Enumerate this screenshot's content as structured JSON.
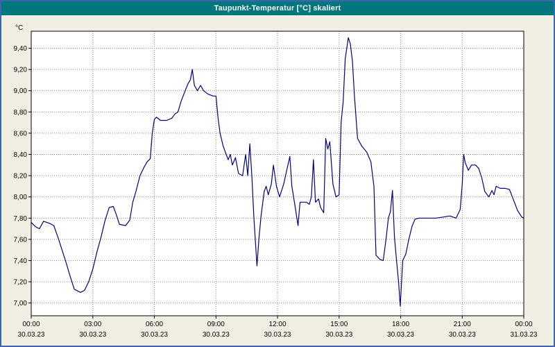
{
  "window": {
    "title": "Taupunkt-Temperatur [°C] skaliert"
  },
  "colors": {
    "titlebar_bg": "#00767d",
    "titlebar_text": "#ffffff",
    "window_border": "#3a66b0",
    "chart_bg": "#f1efe4",
    "plot_bg": "#ffffff",
    "grid": "#8a8a8a",
    "axis": "#000000",
    "series_line": "#000080"
  },
  "chart_data": {
    "type": "line",
    "title": "Taupunkt-Temperatur [°C] skaliert",
    "ylabel": "°C",
    "xlabel": "",
    "legend": "none",
    "grid": "dotted",
    "ylim": [
      6.88,
      9.56
    ],
    "xlim_hours": [
      0,
      24
    ],
    "y_ticks": [
      {
        "value": 9.4,
        "label": "9,40"
      },
      {
        "value": 9.2,
        "label": "9,20"
      },
      {
        "value": 9.0,
        "label": "9,00"
      },
      {
        "value": 8.8,
        "label": "8,80"
      },
      {
        "value": 8.6,
        "label": "8,60"
      },
      {
        "value": 8.4,
        "label": "8,40"
      },
      {
        "value": 8.2,
        "label": "8,20"
      },
      {
        "value": 8.0,
        "label": "8,00"
      },
      {
        "value": 7.8,
        "label": "7,80"
      },
      {
        "value": 7.6,
        "label": "7,60"
      },
      {
        "value": 7.4,
        "label": "7,40"
      },
      {
        "value": 7.2,
        "label": "7,20"
      },
      {
        "value": 7.0,
        "label": "7,00"
      }
    ],
    "x_ticks": [
      {
        "hour": 0,
        "time": "00:00",
        "date": "30.03.23"
      },
      {
        "hour": 3,
        "time": "03:00",
        "date": "30.03.23"
      },
      {
        "hour": 6,
        "time": "06:00",
        "date": "30.03.23"
      },
      {
        "hour": 9,
        "time": "09:00",
        "date": "30.03.23"
      },
      {
        "hour": 12,
        "time": "12:00",
        "date": "30.03.23"
      },
      {
        "hour": 15,
        "time": "15:00",
        "date": "30.03.23"
      },
      {
        "hour": 18,
        "time": "18:00",
        "date": "30.03.23"
      },
      {
        "hour": 21,
        "time": "21:00",
        "date": "30.03.23"
      },
      {
        "hour": 24,
        "time": "00:00",
        "date": "31.03.23"
      }
    ],
    "series": [
      {
        "name": "Taupunkt-Temperatur [°C]",
        "color": "#000080",
        "points": [
          [
            0.0,
            7.76
          ],
          [
            0.2,
            7.72
          ],
          [
            0.4,
            7.7
          ],
          [
            0.6,
            7.77
          ],
          [
            0.9,
            7.75
          ],
          [
            1.1,
            7.73
          ],
          [
            1.3,
            7.62
          ],
          [
            1.5,
            7.5
          ],
          [
            1.7,
            7.38
          ],
          [
            1.9,
            7.25
          ],
          [
            2.1,
            7.13
          ],
          [
            2.4,
            7.1
          ],
          [
            2.6,
            7.12
          ],
          [
            2.8,
            7.2
          ],
          [
            3.0,
            7.32
          ],
          [
            3.2,
            7.48
          ],
          [
            3.4,
            7.62
          ],
          [
            3.6,
            7.78
          ],
          [
            3.8,
            7.9
          ],
          [
            4.0,
            7.91
          ],
          [
            4.15,
            7.83
          ],
          [
            4.3,
            7.74
          ],
          [
            4.6,
            7.73
          ],
          [
            4.8,
            7.78
          ],
          [
            4.95,
            7.95
          ],
          [
            5.1,
            8.05
          ],
          [
            5.3,
            8.2
          ],
          [
            5.5,
            8.28
          ],
          [
            5.65,
            8.33
          ],
          [
            5.8,
            8.36
          ],
          [
            5.9,
            8.6
          ],
          [
            6.0,
            8.73
          ],
          [
            6.1,
            8.75
          ],
          [
            6.3,
            8.72
          ],
          [
            6.6,
            8.72
          ],
          [
            6.85,
            8.74
          ],
          [
            7.0,
            8.78
          ],
          [
            7.15,
            8.8
          ],
          [
            7.3,
            8.9
          ],
          [
            7.5,
            9.0
          ],
          [
            7.65,
            9.07
          ],
          [
            7.75,
            9.1
          ],
          [
            7.85,
            9.2
          ],
          [
            7.95,
            9.05
          ],
          [
            8.1,
            9.0
          ],
          [
            8.25,
            9.05
          ],
          [
            8.4,
            9.0
          ],
          [
            8.6,
            8.97
          ],
          [
            8.85,
            8.95
          ],
          [
            9.0,
            8.95
          ],
          [
            9.1,
            8.75
          ],
          [
            9.2,
            8.6
          ],
          [
            9.35,
            8.48
          ],
          [
            9.5,
            8.4
          ],
          [
            9.6,
            8.35
          ],
          [
            9.7,
            8.4
          ],
          [
            9.8,
            8.3
          ],
          [
            9.95,
            8.37
          ],
          [
            10.1,
            8.22
          ],
          [
            10.3,
            8.2
          ],
          [
            10.45,
            8.4
          ],
          [
            10.55,
            8.2
          ],
          [
            10.65,
            8.5
          ],
          [
            10.75,
            8.2
          ],
          [
            10.85,
            7.8
          ],
          [
            11.0,
            7.35
          ],
          [
            11.1,
            7.62
          ],
          [
            11.2,
            7.82
          ],
          [
            11.35,
            8.05
          ],
          [
            11.45,
            8.1
          ],
          [
            11.55,
            8.02
          ],
          [
            11.7,
            8.12
          ],
          [
            11.8,
            8.3
          ],
          [
            11.95,
            8.1
          ],
          [
            12.1,
            8.0
          ],
          [
            12.3,
            8.12
          ],
          [
            12.45,
            8.25
          ],
          [
            12.6,
            8.38
          ],
          [
            12.7,
            8.1
          ],
          [
            12.85,
            7.92
          ],
          [
            13.0,
            7.73
          ],
          [
            13.1,
            7.95
          ],
          [
            13.4,
            7.95
          ],
          [
            13.55,
            7.93
          ],
          [
            13.65,
            8.0
          ],
          [
            13.75,
            8.35
          ],
          [
            13.85,
            7.95
          ],
          [
            14.0,
            7.98
          ],
          [
            14.1,
            7.9
          ],
          [
            14.25,
            7.85
          ],
          [
            14.35,
            8.55
          ],
          [
            14.45,
            8.45
          ],
          [
            14.55,
            8.52
          ],
          [
            14.7,
            8.12
          ],
          [
            14.85,
            8.0
          ],
          [
            15.0,
            8.02
          ],
          [
            15.1,
            8.7
          ],
          [
            15.2,
            8.9
          ],
          [
            15.3,
            9.3
          ],
          [
            15.45,
            9.5
          ],
          [
            15.55,
            9.44
          ],
          [
            15.65,
            9.28
          ],
          [
            15.75,
            8.95
          ],
          [
            15.9,
            8.55
          ],
          [
            16.1,
            8.48
          ],
          [
            16.35,
            8.42
          ],
          [
            16.55,
            8.33
          ],
          [
            16.7,
            8.1
          ],
          [
            16.8,
            7.45
          ],
          [
            17.0,
            7.41
          ],
          [
            17.15,
            7.4
          ],
          [
            17.3,
            7.62
          ],
          [
            17.4,
            7.8
          ],
          [
            17.5,
            7.86
          ],
          [
            17.6,
            8.06
          ],
          [
            17.7,
            7.62
          ],
          [
            17.8,
            7.4
          ],
          [
            17.9,
            7.2
          ],
          [
            17.98,
            6.97
          ],
          [
            18.1,
            7.4
          ],
          [
            18.25,
            7.46
          ],
          [
            18.4,
            7.6
          ],
          [
            18.55,
            7.72
          ],
          [
            18.7,
            7.79
          ],
          [
            18.9,
            7.8
          ],
          [
            19.3,
            7.8
          ],
          [
            19.7,
            7.8
          ],
          [
            20.1,
            7.81
          ],
          [
            20.4,
            7.82
          ],
          [
            20.7,
            7.8
          ],
          [
            20.9,
            7.88
          ],
          [
            21.0,
            8.12
          ],
          [
            21.07,
            8.4
          ],
          [
            21.15,
            8.32
          ],
          [
            21.3,
            8.25
          ],
          [
            21.45,
            8.3
          ],
          [
            21.65,
            8.3
          ],
          [
            21.8,
            8.27
          ],
          [
            21.95,
            8.18
          ],
          [
            22.1,
            8.05
          ],
          [
            22.3,
            8.0
          ],
          [
            22.45,
            8.06
          ],
          [
            22.55,
            8.02
          ],
          [
            22.65,
            8.1
          ],
          [
            22.85,
            8.08
          ],
          [
            23.1,
            8.08
          ],
          [
            23.3,
            8.07
          ],
          [
            23.5,
            7.97
          ],
          [
            23.7,
            7.87
          ],
          [
            23.9,
            7.81
          ],
          [
            24.0,
            7.8
          ]
        ]
      }
    ]
  }
}
